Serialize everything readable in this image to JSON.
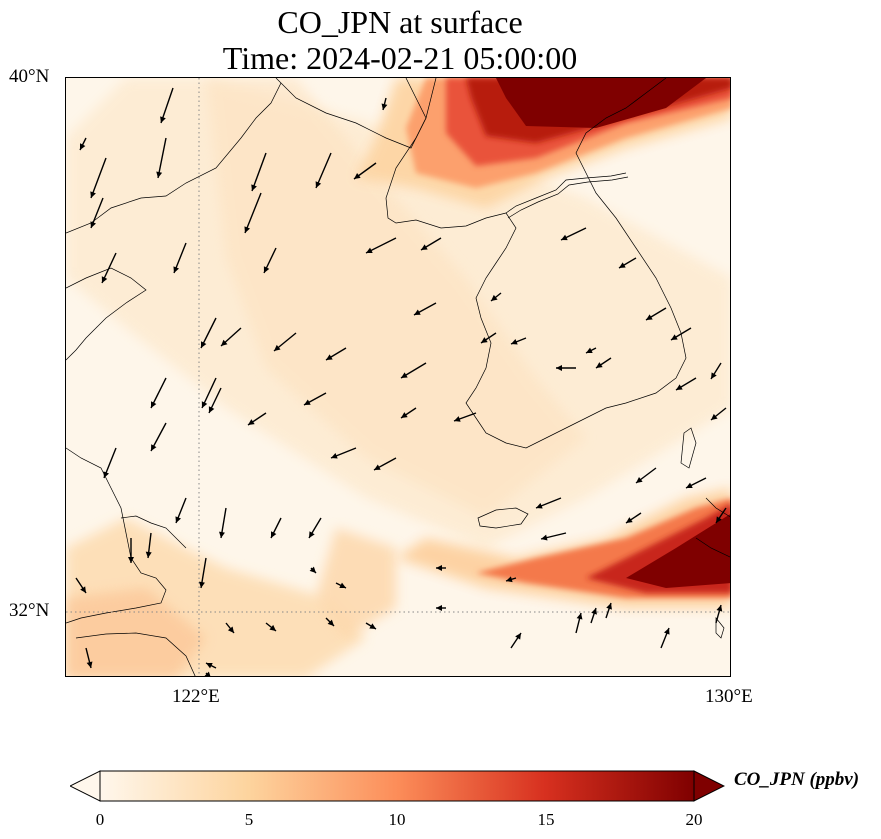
{
  "title": {
    "line1": "CO_JPN at surface",
    "line2": "Time: 2024-02-21 05:00:00"
  },
  "axes": {
    "lat_ticks": [
      "40°N",
      "32°N"
    ],
    "lon_ticks": [
      "122°E",
      "130°E"
    ],
    "lat_range": [
      31,
      40
    ],
    "lon_range": [
      120,
      130
    ]
  },
  "colorbar": {
    "label": "CO_JPN (ppbv)",
    "ticks": [
      "0",
      "5",
      "10",
      "15",
      "20"
    ],
    "range": [
      0,
      20
    ],
    "colormap": "OrRd",
    "colors": [
      "#fff7ec",
      "#fdd49e",
      "#fc8d59",
      "#d7301f",
      "#7f0000"
    ],
    "extend": "both"
  },
  "map": {
    "projection": "PlateCarree",
    "gridlines": "dotted at 122°E and 32°N",
    "overlays": [
      "coastlines",
      "borders",
      "wind vectors"
    ]
  }
}
